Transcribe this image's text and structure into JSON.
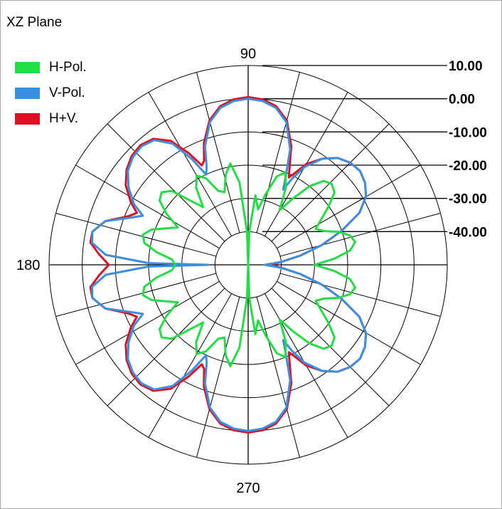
{
  "panel": {
    "title": "XZ Plane"
  },
  "legend": [
    {
      "label": "H-Pol.",
      "color": "#22dd44"
    },
    {
      "label": "V-Pol.",
      "color": "#3a8fe0"
    },
    {
      "label": "H+V.",
      "color": "#dd1122"
    }
  ],
  "chart_data": {
    "type": "polar-line",
    "title": "XZ Plane",
    "angle_labels": [
      {
        "deg": 90,
        "text": "90"
      },
      {
        "deg": 180,
        "text": "180"
      },
      {
        "deg": 270,
        "text": "270"
      }
    ],
    "radial_ticks": [
      "10.00",
      "0.00",
      "-10.00",
      "-20.00",
      "-30.00",
      "-40.00"
    ],
    "r_range_db": [
      -50,
      10
    ],
    "r_ring_step_db": 10,
    "spoke_step_deg": 15,
    "grid": true,
    "legend_position": "top-left",
    "series": [
      {
        "name": "H+V.",
        "color": "#dd1122",
        "points_deg_db": [
          [
            0,
            -43
          ],
          [
            5,
            -40
          ],
          [
            10,
            -34
          ],
          [
            15,
            -27
          ],
          [
            20,
            -20
          ],
          [
            25,
            -13
          ],
          [
            30,
            -9
          ],
          [
            35,
            -7
          ],
          [
            40,
            -6
          ],
          [
            45,
            -6.5
          ],
          [
            50,
            -8
          ],
          [
            55,
            -11
          ],
          [
            60,
            -15
          ],
          [
            63,
            -19
          ],
          [
            65,
            -21
          ],
          [
            67,
            -18
          ],
          [
            70,
            -12
          ],
          [
            75,
            -5
          ],
          [
            80,
            -1.5
          ],
          [
            85,
            0
          ],
          [
            90,
            0.5
          ],
          [
            95,
            0
          ],
          [
            100,
            -1.5
          ],
          [
            105,
            -5
          ],
          [
            110,
            -11
          ],
          [
            113,
            -16
          ],
          [
            115,
            -17
          ],
          [
            118,
            -12
          ],
          [
            122,
            -6
          ],
          [
            127,
            -2.5
          ],
          [
            132,
            -1.5
          ],
          [
            137,
            -2
          ],
          [
            142,
            -3.5
          ],
          [
            147,
            -6
          ],
          [
            152,
            -10
          ],
          [
            155,
            -13
          ],
          [
            158,
            -11
          ],
          [
            163,
            -5
          ],
          [
            168,
            -2
          ],
          [
            172,
            -2
          ],
          [
            176,
            -5
          ],
          [
            180,
            -8
          ],
          [
            184,
            -5
          ],
          [
            188,
            -2
          ],
          [
            192,
            -2
          ],
          [
            197,
            -5
          ],
          [
            202,
            -11
          ],
          [
            205,
            -13
          ],
          [
            208,
            -10
          ],
          [
            213,
            -6
          ],
          [
            218,
            -3.5
          ],
          [
            223,
            -2
          ],
          [
            228,
            -1.5
          ],
          [
            233,
            -2.5
          ],
          [
            238,
            -6
          ],
          [
            242,
            -12
          ],
          [
            245,
            -17
          ],
          [
            247,
            -16
          ],
          [
            250,
            -11
          ],
          [
            255,
            -5
          ],
          [
            260,
            -1.5
          ],
          [
            265,
            0
          ],
          [
            270,
            0.5
          ],
          [
            275,
            0
          ],
          [
            280,
            -1.5
          ],
          [
            285,
            -5
          ],
          [
            290,
            -12
          ],
          [
            293,
            -18
          ],
          [
            295,
            -21
          ],
          [
            297,
            -19
          ],
          [
            300,
            -15
          ],
          [
            305,
            -11
          ],
          [
            310,
            -8
          ],
          [
            315,
            -6.5
          ],
          [
            320,
            -6
          ],
          [
            325,
            -7
          ],
          [
            330,
            -9
          ],
          [
            335,
            -13
          ],
          [
            340,
            -20
          ],
          [
            345,
            -27
          ],
          [
            350,
            -34
          ],
          [
            355,
            -40
          ],
          [
            360,
            -43
          ]
        ]
      },
      {
        "name": "V-Pol.",
        "color": "#3a8fe0",
        "points_deg_db": [
          [
            0,
            -45
          ],
          [
            5,
            -40
          ],
          [
            10,
            -34
          ],
          [
            15,
            -27
          ],
          [
            20,
            -20
          ],
          [
            25,
            -13
          ],
          [
            30,
            -9
          ],
          [
            35,
            -7
          ],
          [
            40,
            -6
          ],
          [
            45,
            -6.5
          ],
          [
            50,
            -8
          ],
          [
            55,
            -11
          ],
          [
            60,
            -16
          ],
          [
            63,
            -21
          ],
          [
            65,
            -25
          ],
          [
            67,
            -21
          ],
          [
            70,
            -13
          ],
          [
            75,
            -5.5
          ],
          [
            80,
            -2
          ],
          [
            85,
            -0.5
          ],
          [
            90,
            0
          ],
          [
            95,
            -0.5
          ],
          [
            100,
            -2
          ],
          [
            105,
            -5.5
          ],
          [
            110,
            -12
          ],
          [
            113,
            -18
          ],
          [
            115,
            -20
          ],
          [
            118,
            -14
          ],
          [
            122,
            -7
          ],
          [
            127,
            -3
          ],
          [
            132,
            -2
          ],
          [
            137,
            -2.5
          ],
          [
            142,
            -4
          ],
          [
            147,
            -7
          ],
          [
            152,
            -11
          ],
          [
            155,
            -15
          ],
          [
            158,
            -12
          ],
          [
            163,
            -5
          ],
          [
            168,
            -2
          ],
          [
            172,
            -2.5
          ],
          [
            176,
            -7
          ],
          [
            179,
            -20
          ],
          [
            180,
            -38
          ],
          [
            181,
            -20
          ],
          [
            184,
            -7
          ],
          [
            188,
            -2.5
          ],
          [
            192,
            -2
          ],
          [
            197,
            -5
          ],
          [
            202,
            -12
          ],
          [
            205,
            -15
          ],
          [
            208,
            -11
          ],
          [
            213,
            -7
          ],
          [
            218,
            -4
          ],
          [
            223,
            -2.5
          ],
          [
            228,
            -2
          ],
          [
            233,
            -3
          ],
          [
            238,
            -7
          ],
          [
            242,
            -14
          ],
          [
            245,
            -20
          ],
          [
            247,
            -18
          ],
          [
            250,
            -12
          ],
          [
            255,
            -5.5
          ],
          [
            260,
            -2
          ],
          [
            265,
            -0.5
          ],
          [
            270,
            0
          ],
          [
            275,
            -0.5
          ],
          [
            280,
            -2
          ],
          [
            285,
            -5.5
          ],
          [
            290,
            -13
          ],
          [
            293,
            -21
          ],
          [
            295,
            -25
          ],
          [
            297,
            -21
          ],
          [
            300,
            -16
          ],
          [
            305,
            -11
          ],
          [
            310,
            -8
          ],
          [
            315,
            -6.5
          ],
          [
            320,
            -6
          ],
          [
            325,
            -7
          ],
          [
            330,
            -9
          ],
          [
            335,
            -13
          ],
          [
            340,
            -20
          ],
          [
            345,
            -27
          ],
          [
            350,
            -34
          ],
          [
            355,
            -40
          ],
          [
            360,
            -45
          ]
        ]
      },
      {
        "name": "H-Pol.",
        "color": "#22dd44",
        "points_deg_db": [
          [
            0,
            -30
          ],
          [
            4,
            -24
          ],
          [
            8,
            -19
          ],
          [
            12,
            -17
          ],
          [
            16,
            -18
          ],
          [
            20,
            -21
          ],
          [
            24,
            -25
          ],
          [
            28,
            -27
          ],
          [
            32,
            -24
          ],
          [
            36,
            -20
          ],
          [
            40,
            -16
          ],
          [
            44,
            -15
          ],
          [
            48,
            -16
          ],
          [
            52,
            -20
          ],
          [
            56,
            -26
          ],
          [
            60,
            -31
          ],
          [
            64,
            -24
          ],
          [
            68,
            -20
          ],
          [
            72,
            -22
          ],
          [
            76,
            -28
          ],
          [
            80,
            -33
          ],
          [
            84,
            -29
          ],
          [
            88,
            -40
          ],
          [
            90,
            -50
          ],
          [
            92,
            -40
          ],
          [
            96,
            -25
          ],
          [
            100,
            -19
          ],
          [
            104,
            -22
          ],
          [
            108,
            -27
          ],
          [
            112,
            -26
          ],
          [
            116,
            -21
          ],
          [
            120,
            -19
          ],
          [
            124,
            -22
          ],
          [
            128,
            -28
          ],
          [
            132,
            -24
          ],
          [
            136,
            -18
          ],
          [
            140,
            -16
          ],
          [
            144,
            -17
          ],
          [
            148,
            -21
          ],
          [
            152,
            -26
          ],
          [
            156,
            -23
          ],
          [
            160,
            -19
          ],
          [
            164,
            -17
          ],
          [
            168,
            -18
          ],
          [
            172,
            -22
          ],
          [
            176,
            -27
          ],
          [
            180,
            -28
          ],
          [
            184,
            -27
          ],
          [
            188,
            -22
          ],
          [
            192,
            -18
          ],
          [
            196,
            -17
          ],
          [
            200,
            -19
          ],
          [
            204,
            -23
          ],
          [
            208,
            -26
          ],
          [
            212,
            -21
          ],
          [
            216,
            -17
          ],
          [
            220,
            -16
          ],
          [
            224,
            -18
          ],
          [
            228,
            -24
          ],
          [
            232,
            -28
          ],
          [
            236,
            -22
          ],
          [
            240,
            -19
          ],
          [
            244,
            -21
          ],
          [
            248,
            -26
          ],
          [
            252,
            -27
          ],
          [
            256,
            -22
          ],
          [
            260,
            -19
          ],
          [
            264,
            -25
          ],
          [
            268,
            -40
          ],
          [
            270,
            -50
          ],
          [
            272,
            -40
          ],
          [
            276,
            -29
          ],
          [
            280,
            -33
          ],
          [
            284,
            -28
          ],
          [
            288,
            -22
          ],
          [
            292,
            -20
          ],
          [
            296,
            -24
          ],
          [
            300,
            -31
          ],
          [
            304,
            -26
          ],
          [
            308,
            -20
          ],
          [
            312,
            -16
          ],
          [
            316,
            -15
          ],
          [
            320,
            -16
          ],
          [
            324,
            -20
          ],
          [
            328,
            -24
          ],
          [
            332,
            -27
          ],
          [
            336,
            -25
          ],
          [
            340,
            -21
          ],
          [
            344,
            -18
          ],
          [
            348,
            -17
          ],
          [
            352,
            -19
          ],
          [
            356,
            -24
          ],
          [
            360,
            -30
          ]
        ]
      }
    ]
  }
}
